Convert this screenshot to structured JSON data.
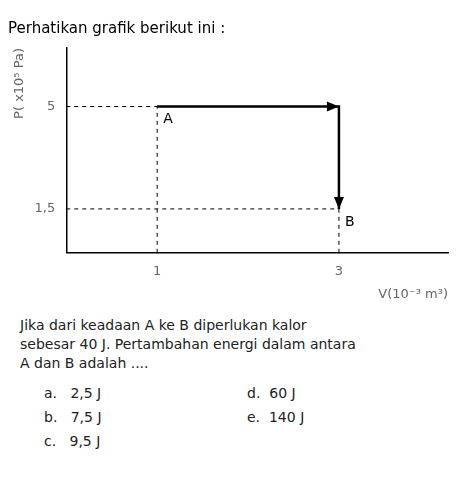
{
  "chart_data": {
    "type": "line",
    "title": "Perhatikan grafik berikut ini :",
    "xlabel": "V(10⁻³ m³)",
    "ylabel": "P( x10⁵ Pa)",
    "x": [
      1,
      3,
      3
    ],
    "values": [
      5,
      5,
      1.5
    ],
    "color": "#000000",
    "xlim": [
      0,
      4.2
    ],
    "ylim": [
      0,
      7.0
    ],
    "xticks": [
      1,
      3
    ],
    "yticks": [
      {
        "value": 1.5,
        "label": "1,5"
      },
      5
    ],
    "grid": false,
    "annotations": [
      {
        "text": "A",
        "x": 1,
        "y": 5
      },
      {
        "text": "B",
        "x": 3,
        "y": 1.5
      }
    ],
    "question": "Jika dari keadaan A ke B diperlukan kalor\nsebesar 40 J. Pertambahan energi dalam antara\nA dan B adalah ....",
    "choices_left": [
      "a.   2,5 J",
      "b.   7,5 J",
      "c.   9,5 J"
    ],
    "choices_right": [
      "d.  60 J",
      "e.  140 J"
    ]
  }
}
